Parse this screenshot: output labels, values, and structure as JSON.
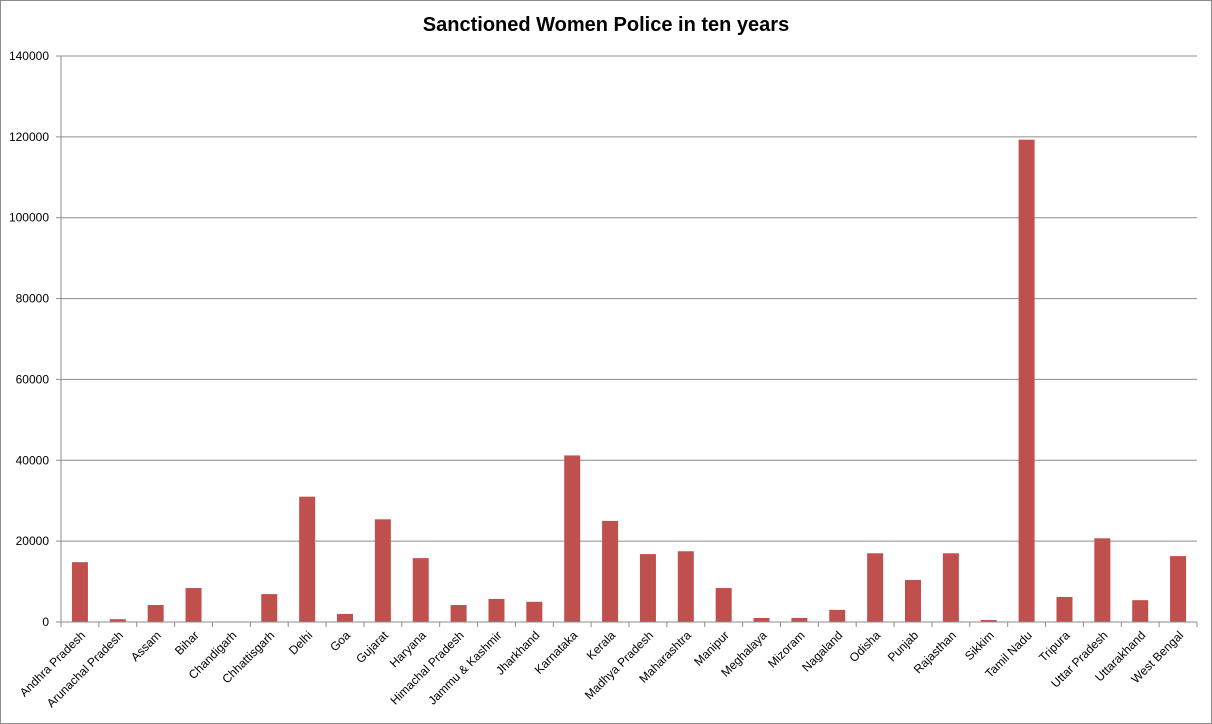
{
  "chart_data": {
    "type": "bar",
    "title": "Sanctioned Women Police in ten years",
    "xlabel": "",
    "ylabel": "",
    "ylim": [
      0,
      140000
    ],
    "yticks": [
      0,
      20000,
      40000,
      60000,
      80000,
      100000,
      120000,
      140000
    ],
    "grid": true,
    "legend": "none",
    "bar_color": "#c0504d",
    "categories": [
      "Andhra Pradesh",
      "Arunachal Pradesh",
      "Assam",
      "Bihar",
      "Chandigarh",
      "Chhattisgarh",
      "Delhi",
      "Goa",
      "Gujarat",
      "Haryana",
      "Himachal Pradesh",
      "Jammu & Kashmir",
      "Jharkhand",
      "Karnataka",
      "Kerala",
      "Madhya Pradesh",
      "Maharashtra",
      "Manipur",
      "Meghalaya",
      "Mizoram",
      "Nagaland",
      "Odisha",
      "Punjab",
      "Rajasthan",
      "Sikkim",
      "Tamil Nadu",
      "Tripura",
      "Uttar Pradesh",
      "Uttarakhand",
      "West Bengal"
    ],
    "values": [
      14800,
      700,
      4200,
      8400,
      0,
      6900,
      31000,
      2000,
      25400,
      15800,
      4200,
      5700,
      5000,
      41200,
      25000,
      16800,
      17500,
      8400,
      1000,
      1000,
      3000,
      17000,
      10400,
      17000,
      500,
      119300,
      6200,
      20700,
      5400,
      16300
    ]
  }
}
